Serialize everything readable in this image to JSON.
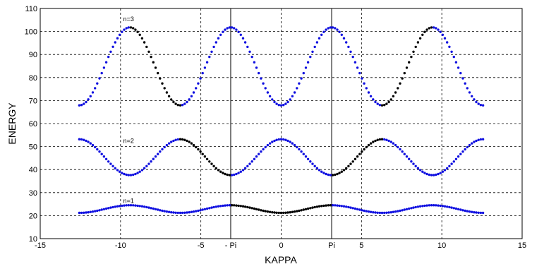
{
  "chart_data": {
    "type": "scatter",
    "xlabel": "KAPPA",
    "ylabel": "ENERGY",
    "xlim": [
      -15,
      15
    ],
    "ylim": [
      10,
      110
    ],
    "x_ticks": [
      -15,
      -10,
      -5,
      0,
      5,
      10,
      15
    ],
    "y_ticks": [
      10,
      20,
      30,
      40,
      50,
      60,
      70,
      80,
      90,
      100,
      110
    ],
    "special_ticks": [
      {
        "label": "- Pi",
        "x": -3.1416
      },
      {
        "label": "Pi",
        "x": 3.1416
      }
    ],
    "vertical_lines_x": [
      -3.1416,
      3.1416
    ],
    "grid": true,
    "x_range_points": [
      -12.566,
      12.566
    ],
    "points_per_series": 181,
    "highlight_color": "#000000",
    "series": [
      {
        "name": "n=1",
        "label_at": [
          -9.5,
          25.5
        ],
        "color": "#1010e0",
        "min": 21.2,
        "max": 24.5,
        "shape": "max_at_pi",
        "highlight_x": [
          -3.1416,
          3.1416
        ]
      },
      {
        "name": "n=2",
        "label_at": [
          -9.5,
          51.5
        ],
        "color": "#1010e0",
        "min": 37.6,
        "max": 53.2,
        "shape": "max_at_0",
        "highlight_x": [
          -6.2832,
          -3.1416,
          3.1416,
          6.2832
        ]
      },
      {
        "name": "n=3",
        "label_at": [
          -9.5,
          104.5
        ],
        "color": "#1010e0",
        "min": 67.9,
        "max": 101.8,
        "shape": "max_at_pi",
        "highlight_x": [
          -9.4248,
          -6.2832,
          6.2832,
          9.4248
        ]
      }
    ]
  }
}
